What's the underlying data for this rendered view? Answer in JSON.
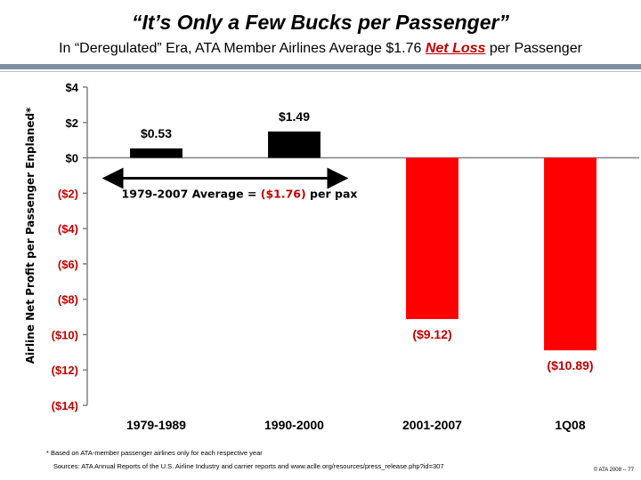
{
  "title": "“It’s Only a Few Bucks per Passenger”",
  "subtitle": {
    "before": "In “Deregulated” Era, ATA Member Airlines Average $1.76 ",
    "emphasis": "Net Loss",
    "after": " per Passenger"
  },
  "colors": {
    "positive": "#000000",
    "negative": "#ff0000",
    "negative_text": "#c00000",
    "axis": "#808080",
    "rule": "#7f8f9f"
  },
  "chart_data": {
    "type": "bar",
    "categories": [
      "1979-1989",
      "1990-2000",
      "2001-2007",
      "1Q08"
    ],
    "values": [
      0.53,
      1.49,
      -9.12,
      -10.89
    ],
    "value_labels": [
      "$0.53",
      "$1.49",
      "($9.12)",
      "($10.89)"
    ],
    "ylabel": "Airline Net Profit per Passenger Enplaned*",
    "ylim": [
      -14,
      4
    ],
    "yticks": [
      4,
      2,
      0,
      -2,
      -4,
      -6,
      -8,
      -10,
      -12,
      -14
    ],
    "ytick_labels": [
      "$4",
      "$2",
      "$0",
      "($2)",
      "($4)",
      "($6)",
      "($8)",
      "($10)",
      "($12)",
      "($14)"
    ],
    "grid": false,
    "annotation": {
      "text_before": "1979-2007 Average = ",
      "text_value": "($1.76)",
      "text_after": " per pax",
      "arrow_from_category": "1979-1989",
      "arrow_to_category": "1990-2000"
    }
  },
  "footnote": "* Based on ATA-member passenger airlines only for each respective year",
  "source": "Sources: ATA Annual Reports of the U.S. Airline Industry and carrier reports and www.aclle.org/resources/press_release.php?id=307",
  "copyright": "© ATA 2008 -- 77"
}
